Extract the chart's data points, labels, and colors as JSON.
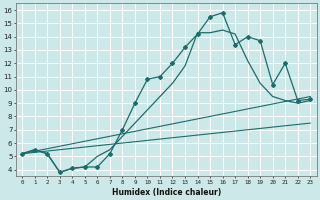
{
  "xlabel": "Humidex (Indice chaleur)",
  "bg_color": "#cce8e8",
  "grid_color": "#ffffff",
  "line_color": "#1e6b6b",
  "xlim": [
    -0.5,
    23.5
  ],
  "ylim": [
    3.5,
    16.5
  ],
  "xticks": [
    0,
    1,
    2,
    3,
    4,
    5,
    6,
    7,
    8,
    9,
    10,
    11,
    12,
    13,
    14,
    15,
    16,
    17,
    18,
    19,
    20,
    21,
    22,
    23
  ],
  "yticks": [
    4,
    5,
    6,
    7,
    8,
    9,
    10,
    11,
    12,
    13,
    14,
    15,
    16
  ],
  "curve_main_x": [
    0,
    1,
    2,
    3,
    4,
    5,
    6,
    7,
    8,
    9,
    10,
    11,
    12,
    13,
    14,
    15,
    16,
    17,
    18,
    19,
    20,
    21,
    22,
    23
  ],
  "curve_main_y": [
    5.2,
    5.5,
    5.2,
    3.8,
    4.1,
    4.2,
    4.2,
    5.2,
    7.0,
    9.0,
    10.8,
    11.0,
    12.0,
    13.2,
    14.2,
    15.5,
    15.8,
    13.4,
    14.0,
    13.7,
    10.4,
    12.0,
    9.2,
    9.3
  ],
  "curve_plain_x": [
    0,
    1,
    2,
    3,
    4,
    5,
    6,
    7,
    8,
    9,
    10,
    11,
    12,
    13,
    14,
    15,
    16,
    17,
    18,
    19,
    20,
    21,
    22,
    23
  ],
  "curve_plain_y": [
    5.2,
    5.5,
    5.2,
    3.8,
    4.1,
    4.2,
    5.0,
    5.5,
    6.5,
    7.5,
    8.5,
    9.5,
    10.5,
    11.8,
    14.3,
    14.3,
    14.5,
    14.2,
    12.2,
    10.5,
    9.5,
    9.2,
    9.0,
    9.2
  ],
  "line1_x": [
    0,
    23
  ],
  "line1_y": [
    5.2,
    9.5
  ],
  "line2_x": [
    0,
    23
  ],
  "line2_y": [
    5.2,
    7.5
  ]
}
